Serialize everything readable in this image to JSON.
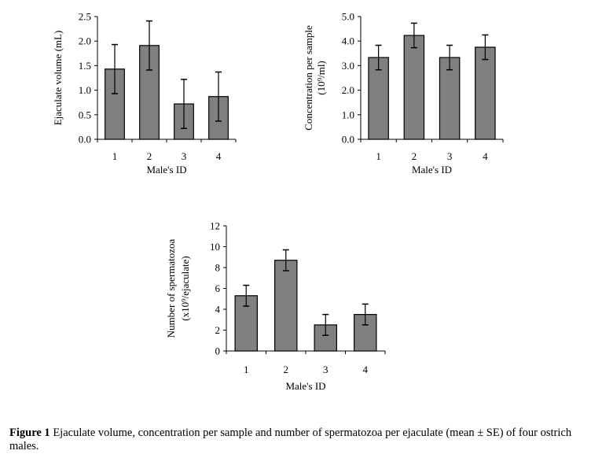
{
  "caption": {
    "label": "Figure 1",
    "text": " Ejaculate volume, concentration per sample and number of spermatozoa per ejaculate (mean ± SE) of four ostrich males."
  },
  "chart_data": [
    {
      "type": "bar",
      "id": "ejaculate-volume",
      "title": "",
      "categories": [
        "1",
        "2",
        "3",
        "4"
      ],
      "values": [
        1.43,
        1.91,
        0.72,
        0.87
      ],
      "errors": [
        0.5,
        0.5,
        0.5,
        0.5
      ],
      "xlabel": "Male's ID",
      "ylabel": [
        "Ejaculate volume (mL)"
      ],
      "ylim": [
        0,
        2.5
      ],
      "yticks": [
        "0.0",
        "0.5",
        "1.0",
        "1.5",
        "2.0",
        "2.5"
      ],
      "ytick_values": [
        0,
        0.5,
        1.0,
        1.5,
        2.0,
        2.5
      ],
      "grid": false,
      "bar_color": "#808080"
    },
    {
      "type": "bar",
      "id": "concentration",
      "title": "",
      "categories": [
        "1",
        "2",
        "3",
        "4"
      ],
      "values": [
        3.33,
        4.23,
        3.33,
        3.75
      ],
      "errors": [
        0.5,
        0.5,
        0.5,
        0.5
      ],
      "xlabel": "Male's ID",
      "ylabel": [
        "Concentration per sample",
        "(10⁹/ml)"
      ],
      "ylim": [
        0,
        5.0
      ],
      "yticks": [
        "0.0",
        "1.0",
        "2.0",
        "3.0",
        "4.0",
        "5.0"
      ],
      "ytick_values": [
        0,
        1,
        2,
        3,
        4,
        5
      ],
      "grid": false,
      "bar_color": "#808080"
    },
    {
      "type": "bar",
      "id": "spermatozoa-number",
      "title": "",
      "categories": [
        "1",
        "2",
        "3",
        "4"
      ],
      "values": [
        5.3,
        8.7,
        2.5,
        3.5
      ],
      "errors": [
        1.0,
        1.0,
        1.0,
        1.0
      ],
      "xlabel": "Male's ID",
      "ylabel": [
        "Number of spermatozoa",
        "(x10⁹/ejaculate)"
      ],
      "ylim": [
        0,
        12
      ],
      "yticks": [
        "0",
        "2",
        "4",
        "6",
        "8",
        "10",
        "12"
      ],
      "ytick_values": [
        0,
        2,
        4,
        6,
        8,
        10,
        12
      ],
      "grid": false,
      "bar_color": "#808080"
    }
  ]
}
